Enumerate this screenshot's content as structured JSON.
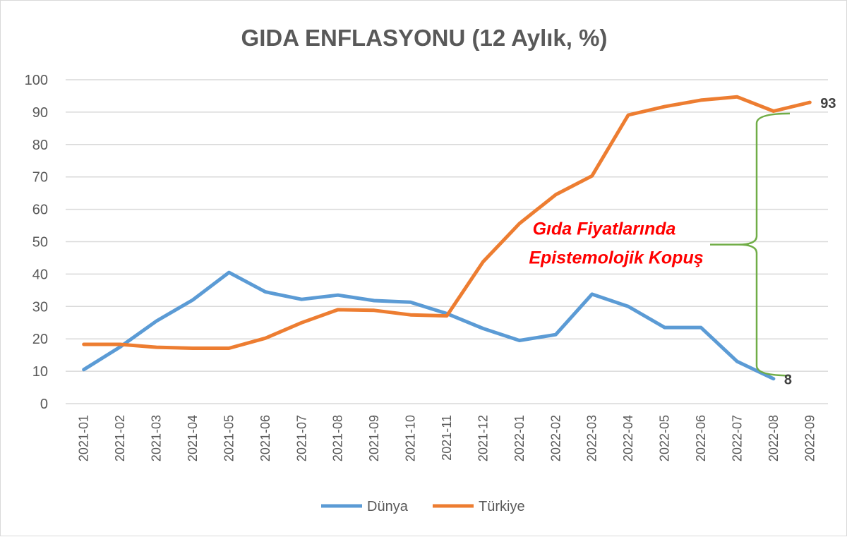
{
  "chart_data": {
    "type": "line",
    "title": "GIDA ENFLASYONU (12 Aylık, %)",
    "xlabel": "",
    "ylabel": "",
    "ylim": [
      0,
      100
    ],
    "yticks": [
      0,
      10,
      20,
      30,
      40,
      50,
      60,
      70,
      80,
      90,
      100
    ],
    "grid": true,
    "legend_position": "bottom",
    "categories": [
      "2021-01",
      "2021-02",
      "2021-03",
      "2021-04",
      "2021-05",
      "2021-06",
      "2021-07",
      "2021-08",
      "2021-09",
      "2021-10",
      "2021-11",
      "2021-12",
      "2022-01",
      "2022-02",
      "2022-03",
      "2022-04",
      "2022-05",
      "2022-06",
      "2022-07",
      "2022-08",
      "2022-09"
    ],
    "series": [
      {
        "name": "Dünya",
        "color": "#5B9BD5",
        "values": [
          10.5,
          17.5,
          25.5,
          32,
          40.5,
          34.5,
          32.2,
          33.5,
          31.8,
          31.3,
          27.8,
          23.2,
          19.5,
          21.3,
          33.8,
          30,
          23.5,
          23.5,
          13,
          7.7,
          null
        ]
      },
      {
        "name": "Türkiye",
        "color": "#ED7D31",
        "values": [
          18.3,
          18.3,
          17.4,
          17.1,
          17.1,
          20.2,
          25,
          29,
          28.8,
          27.4,
          27.1,
          43.8,
          55.6,
          64.5,
          70.3,
          89.1,
          91.7,
          93.7,
          94.7,
          90.3,
          93
        ]
      }
    ],
    "end_labels": [
      {
        "series": "Türkiye",
        "text": "93"
      },
      {
        "series": "Dünya",
        "text": "8"
      }
    ],
    "annotation": {
      "lines": [
        "Gıda Fiyatlarında",
        "Epistemolojik Kopuş"
      ],
      "color": "#FF0000",
      "brace_color": "#70AD47",
      "brace_from": 8,
      "brace_to": 90
    }
  }
}
